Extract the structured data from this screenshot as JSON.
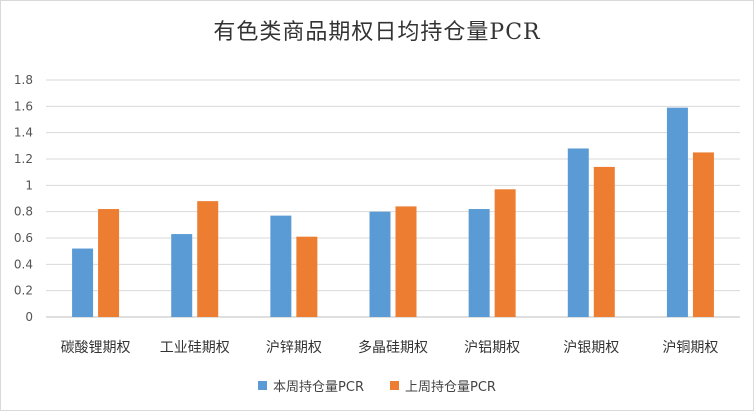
{
  "chart_data": {
    "type": "bar",
    "title": "有色类商品期权日均持仓量PCR",
    "categories": [
      "碳酸锂期权",
      "工业硅期权",
      "沪锌期权",
      "多晶硅期权",
      "沪铝期权",
      "沪银期权",
      "沪铜期权"
    ],
    "series": [
      {
        "name": "本周持仓量PCR",
        "color": "#5b9bd5",
        "values": [
          0.52,
          0.63,
          0.77,
          0.8,
          0.82,
          1.28,
          1.59
        ]
      },
      {
        "name": "上周持仓量PCR",
        "color": "#ed7d31",
        "values": [
          0.82,
          0.88,
          0.61,
          0.84,
          0.97,
          1.14,
          1.25
        ]
      }
    ],
    "ylim": [
      0,
      1.8
    ],
    "yticks": [
      "0",
      "0.2",
      "0.4",
      "0.6",
      "0.8",
      "1",
      "1.2",
      "1.4",
      "1.6",
      "1.8"
    ],
    "grid": true,
    "legend_position": "bottom"
  }
}
